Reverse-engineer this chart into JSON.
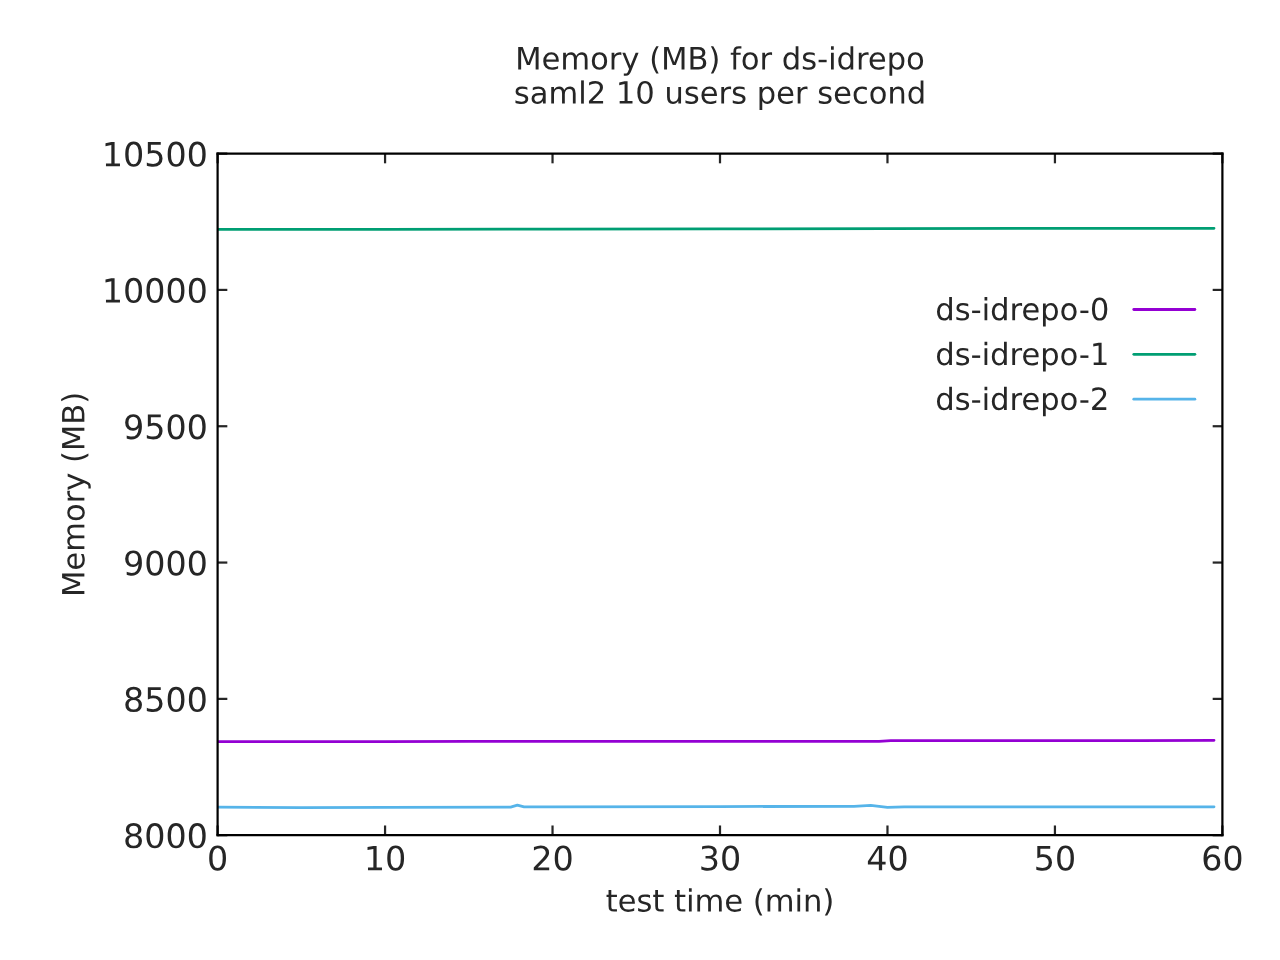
{
  "chart_data": {
    "type": "line",
    "title": "Memory (MB) for ds-idrepo\nsaml2 10 users per second",
    "xlabel": "test time (min)",
    "ylabel": "Memory (MB)",
    "xlim": [
      0,
      60
    ],
    "xticks": [
      0,
      10,
      20,
      30,
      40,
      50,
      60
    ],
    "ylim": [
      8000,
      10500
    ],
    "yticks": [
      8000,
      8500,
      9000,
      9500,
      10000,
      10500
    ],
    "grid": false,
    "legend": "top right",
    "marker": "none",
    "line_style": "solid",
    "series": [
      {
        "name": "ds-idrepo-0",
        "color": "#9400d3",
        "x": [
          0,
          5,
          10,
          15,
          20,
          30,
          39.5,
          40.2,
          45,
          50,
          55,
          59.5
        ],
        "values": [
          8343,
          8343,
          8343,
          8344,
          8344,
          8344,
          8344,
          8347,
          8347,
          8347,
          8347,
          8348
        ]
      },
      {
        "name": "ds-idrepo-1",
        "color": "#009e73",
        "x": [
          0,
          10,
          20,
          30,
          40,
          50,
          59.5
        ],
        "values": [
          10222,
          10222,
          10223,
          10224,
          10225,
          10226,
          10226
        ]
      },
      {
        "name": "ds-idrepo-2",
        "color": "#56b4e9",
        "x": [
          0,
          5,
          10,
          17.5,
          17.9,
          18.3,
          20,
          30,
          38,
          39,
          40,
          41,
          50,
          59.5
        ],
        "values": [
          8103,
          8101,
          8102,
          8103,
          8110,
          8104,
          8104,
          8105,
          8106,
          8109,
          8102,
          8104,
          8104,
          8104
        ]
      }
    ]
  }
}
